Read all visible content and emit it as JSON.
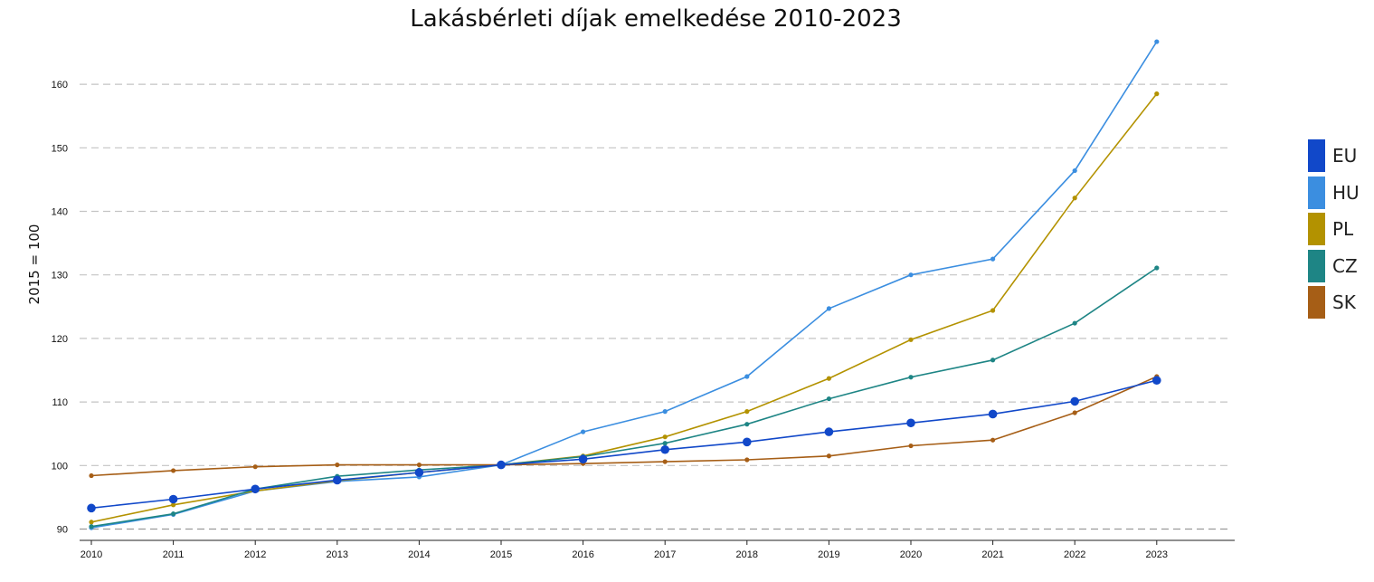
{
  "chart_data": {
    "type": "line",
    "title": "Lakásbérleti díjak emelkedése 2010-2023",
    "xlabel": "",
    "ylabel": "2015 = 100",
    "x": [
      "2010",
      "2011",
      "2012",
      "2013",
      "2014",
      "2015",
      "2016",
      "2017",
      "2018",
      "2019",
      "2020",
      "2021",
      "2022",
      "2023"
    ],
    "yticks": [
      "90",
      "100",
      "110",
      "120",
      "130",
      "140",
      "150",
      "160"
    ],
    "ylim": [
      89,
      167
    ],
    "grid": "horizontal dashed",
    "legend_position": "right",
    "series": [
      {
        "name": "EU",
        "color": "#1148c9",
        "marker": "large",
        "values": [
          93.3,
          94.7,
          96.3,
          97.7,
          98.9,
          100.1,
          101.0,
          102.5,
          103.7,
          105.3,
          106.7,
          108.1,
          110.1,
          113.4
        ]
      },
      {
        "name": "HU",
        "color": "#3b8ee0",
        "marker": "small",
        "values": [
          90.2,
          92.3,
          96.0,
          97.5,
          98.2,
          100.1,
          105.3,
          108.5,
          114.0,
          124.7,
          130.0,
          132.5,
          146.4,
          166.7
        ]
      },
      {
        "name": "PL",
        "color": "#b39200",
        "marker": "small",
        "values": [
          91.1,
          93.8,
          96.0,
          97.6,
          98.9,
          100.1,
          101.5,
          104.5,
          108.5,
          113.7,
          119.8,
          124.4,
          142.1,
          158.5
        ]
      },
      {
        "name": "CZ",
        "color": "#1e8585",
        "marker": "small",
        "values": [
          90.4,
          92.4,
          96.3,
          98.3,
          99.3,
          100.1,
          101.4,
          103.5,
          106.5,
          110.5,
          113.9,
          116.6,
          122.4,
          131.1
        ]
      },
      {
        "name": "SK",
        "color": "#a65e16",
        "marker": "small",
        "values": [
          98.4,
          99.2,
          99.8,
          100.1,
          100.1,
          100.1,
          100.3,
          100.6,
          100.9,
          101.5,
          103.1,
          104.0,
          108.3,
          114.0
        ]
      }
    ]
  }
}
